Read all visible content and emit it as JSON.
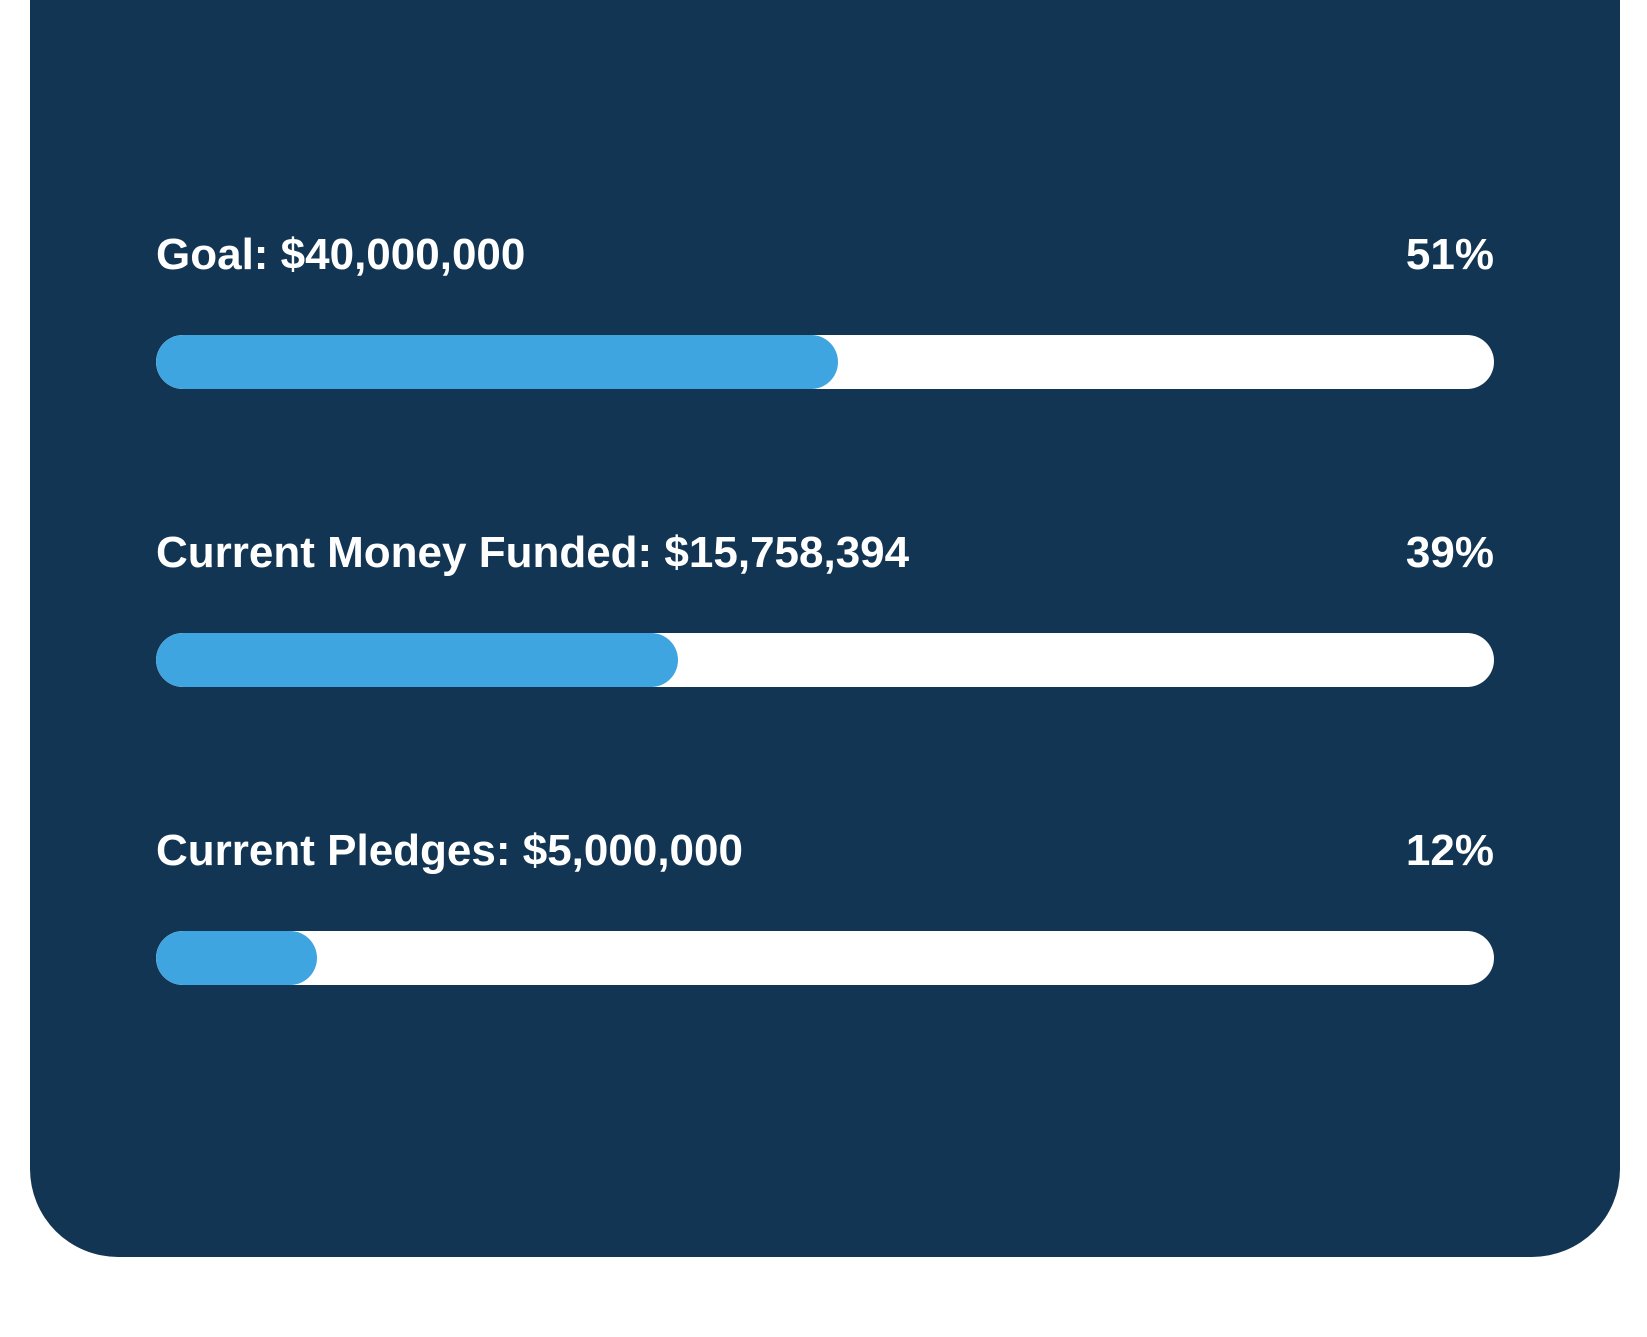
{
  "colors": {
    "card_background": "#123553",
    "bar_fill": "#3ea5e0",
    "bar_track": "#ffffff",
    "text": "#ffffff"
  },
  "progress_items": [
    {
      "label": "Goal: $40,000,000",
      "percent_label": "51%",
      "fill_fraction": 0.51
    },
    {
      "label": "Current Money Funded: $15,758,394",
      "percent_label": "39%",
      "fill_fraction": 0.39
    },
    {
      "label": "Current Pledges: $5,000,000",
      "percent_label": "12%",
      "fill_fraction": 0.12
    }
  ]
}
